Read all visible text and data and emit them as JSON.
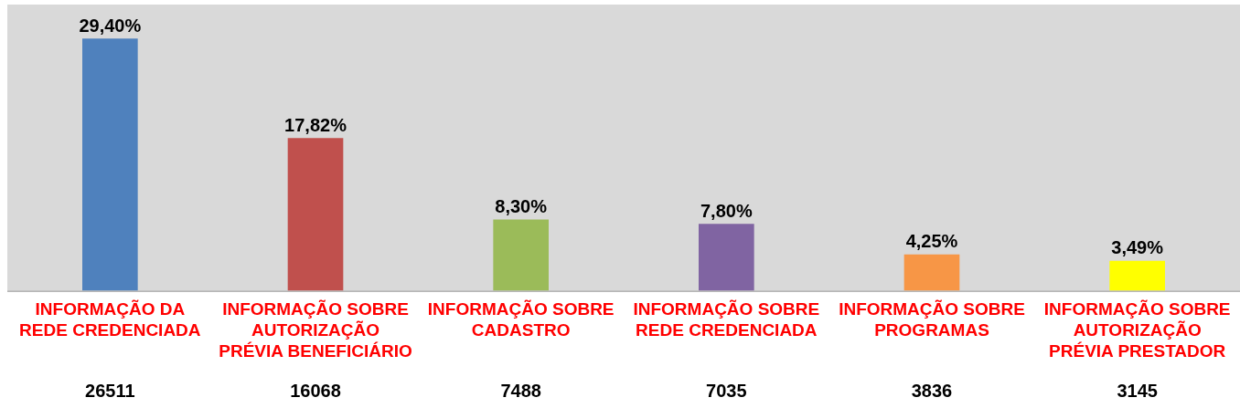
{
  "chart_data": {
    "type": "bar",
    "categories": [
      "INFORMAÇÃO DA REDE CREDENCIADA",
      "INFORMAÇÃO SOBRE AUTORIZAÇÃO PRÉVIA BENEFICIÁRIO",
      "INFORMAÇÃO SOBRE CADASTRO",
      "INFORMAÇÃO SOBRE REDE CREDENCIADA",
      "INFORMAÇÃO SOBRE PROGRAMAS",
      "INFORMAÇÃO SOBRE AUTORIZAÇÃO PRÉVIA PRESTADOR"
    ],
    "values": [
      29.4,
      17.82,
      8.3,
      7.8,
      4.25,
      3.49
    ],
    "colors": [
      "#4f81bd",
      "#c0504d",
      "#9bbb59",
      "#8064a2",
      "#f79646",
      "#ffff00"
    ],
    "value_labels": [
      "29,40%",
      "17,82%",
      "8,30%",
      "7,80%",
      "4,25%",
      "3,49%"
    ],
    "annotations": [
      "26511",
      "16068",
      "7488",
      "7035",
      "3836",
      "3145"
    ],
    "grid": false,
    "legend": false
  }
}
